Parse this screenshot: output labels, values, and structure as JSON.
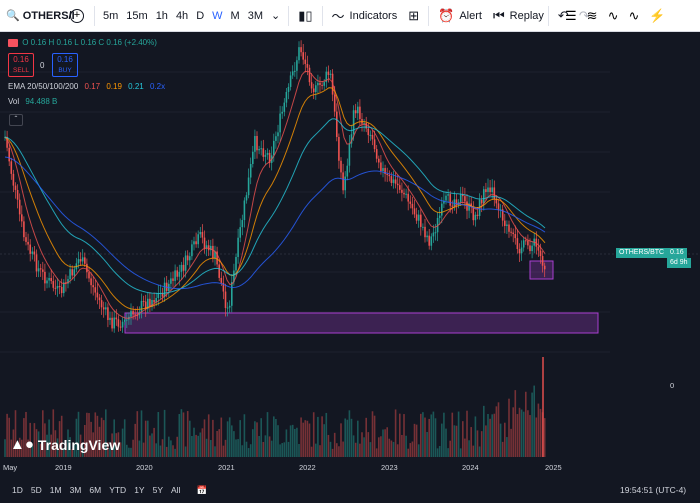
{
  "toolbar": {
    "symbol": "OTHERS/I",
    "intervals": [
      "5m",
      "15m",
      "1h",
      "4h",
      "D",
      "W",
      "M",
      "3M"
    ],
    "active_interval": "W",
    "indicators_label": "Indicators",
    "alert_label": "Alert",
    "replay_label": "Replay"
  },
  "legend": {
    "ohlc": "O 0.16 H 0.16 L 0.16 C 0.16 (+2.40%)",
    "sell_price": "0.16",
    "sell_label": "SELL",
    "spread": "0",
    "buy_price": "0.16",
    "buy_label": "BUY",
    "ema_label": "EMA 20/50/100/200",
    "ema_values": [
      "0.17",
      "0.19",
      "0.21",
      "0.2x"
    ],
    "vol_label": "Vol",
    "vol_value": "94.488 B"
  },
  "price_tag": {
    "symbol": "OTHERS/BTC",
    "value": "0.16",
    "countdown": "6d 9h"
  },
  "volume_scale": "0",
  "x_axis": [
    "May",
    "2019",
    "2020",
    "2021",
    "2022",
    "2023",
    "2024",
    "2025"
  ],
  "range_buttons": [
    "1D",
    "5D",
    "1M",
    "3M",
    "6M",
    "YTD",
    "1Y",
    "5Y",
    "All"
  ],
  "watermark": "TradingView",
  "clock": "19:54:51 (UTC-4)",
  "colors": {
    "up": "#26a69a",
    "down": "#ef5350",
    "ema20": "#ef5350",
    "ema50": "#ff9800",
    "ema100": "#26c6da",
    "ema200": "#2962ff",
    "zone": "#a93fd0"
  }
}
